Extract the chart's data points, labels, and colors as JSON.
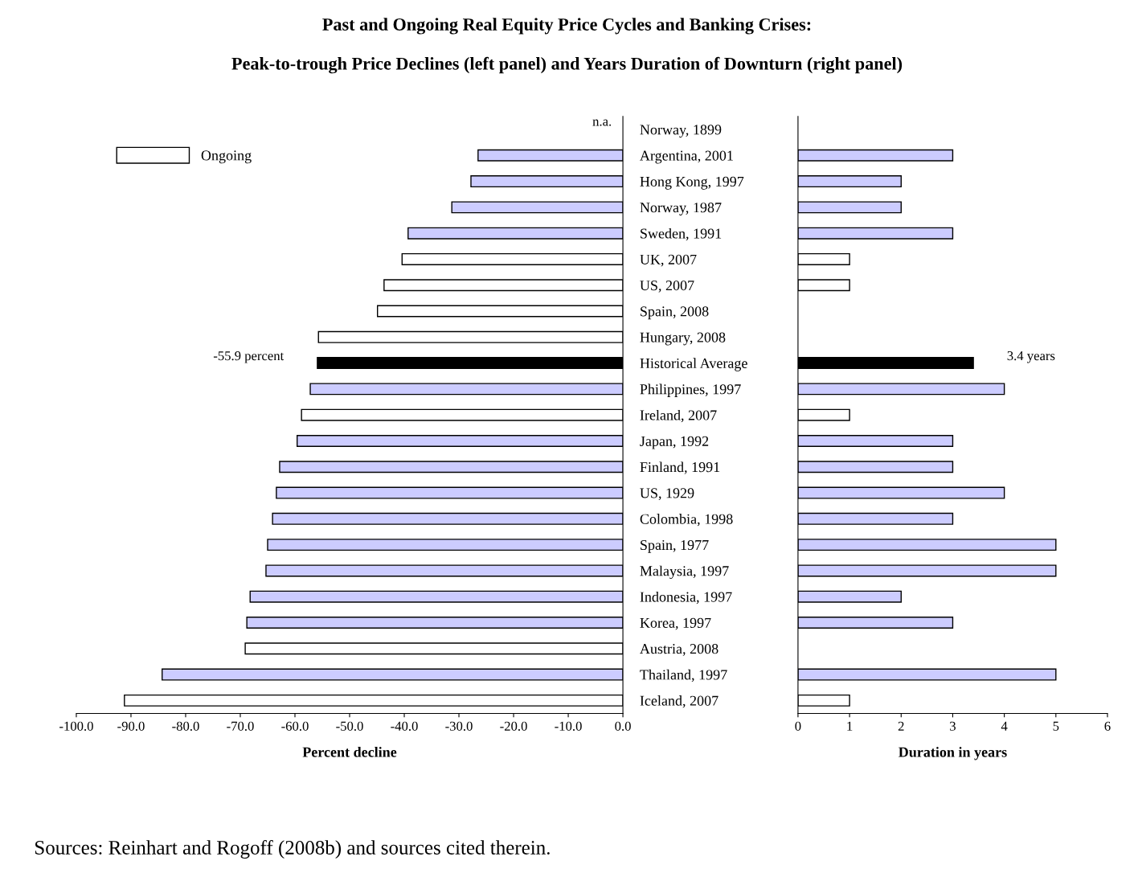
{
  "chart_data": [
    {
      "type": "bar",
      "orientation": "horizontal",
      "title": "Past and Ongoing Real Equity Price Cycles and Banking Crises:",
      "subtitle": "Peak-to-trough Price Declines (left panel) and Years Duration of Downturn (right panel)",
      "xlabel": "Percent decline",
      "categories": [
        "Norway, 1899",
        "Argentina, 2001",
        "Hong Kong, 1997",
        "Norway, 1987",
        "Sweden, 1991",
        "UK, 2007",
        "US, 2007",
        "Spain, 2008",
        "Hungary, 2008",
        "Historical Average",
        "Philippines, 1997",
        "Ireland, 2007",
        "Japan, 1992",
        "Finland, 1991",
        "US, 1929",
        "Colombia, 1998",
        "Spain, 1977",
        "Malaysia, 1997",
        "Indonesia, 1997",
        "Korea, 1997",
        "Austria, 2008",
        "Thailand, 1997",
        "Iceland, 2007"
      ],
      "series": [
        {
          "name": "Ongoing",
          "color": "#ffffff",
          "values": [
            null,
            null,
            null,
            null,
            null,
            -40.4,
            -43.7,
            -44.9,
            -55.7,
            null,
            null,
            -58.8,
            null,
            null,
            null,
            null,
            null,
            null,
            null,
            null,
            -69.1,
            null,
            -91.2
          ]
        },
        {
          "colors": [
            "#ccccff",
            "#ccccff",
            "#ccccff",
            "#ccccff",
            "#ccccff",
            "#ffffff",
            "#ffffff",
            "#ffffff",
            "#ffffff",
            "#000000",
            "#ccccff",
            "#ffffff",
            "#ccccff",
            "#ccccff",
            "#ccccff",
            "#ccccff",
            "#ccccff",
            "#ccccff",
            "#ccccff",
            "#ccccff",
            "#ffffff",
            "#ccccff",
            "#ffffff"
          ],
          "values": [
            null,
            -26.5,
            -27.8,
            -31.3,
            -39.3,
            null,
            null,
            null,
            null,
            -55.9,
            -57.2,
            null,
            -59.6,
            -62.8,
            -63.4,
            -64.1,
            -65.0,
            -65.3,
            -68.2,
            -68.8,
            null,
            -84.3,
            null
          ]
        }
      ],
      "xlim": [
        -100,
        0
      ],
      "xticks": [
        {
          "value": -100,
          "label": "-100.0"
        },
        {
          "value": -90,
          "label": "-90.0"
        },
        {
          "value": -80,
          "label": "-80.0"
        },
        {
          "value": -70,
          "label": "-70.0"
        },
        {
          "value": -60,
          "label": "-60.0"
        },
        {
          "value": -50,
          "label": "-50.0"
        },
        {
          "value": -40,
          "label": "-40.0"
        },
        {
          "value": -30,
          "label": "-30.0"
        },
        {
          "value": -20,
          "label": "-20.0"
        },
        {
          "value": -10,
          "label": "-10.0"
        },
        {
          "value": 0,
          "label": "0.0"
        }
      ],
      "legend": "top left",
      "annotations": [
        "n.a.",
        {
          "text": "-55.9 percent",
          "x": -55.9,
          "y": "Historical Average"
        },
        "Sources: Reinhart and Rogoff (2008b) and sources cited therein."
      ]
    },
    {
      "type": "bar",
      "orientation": "horizontal",
      "xlabel": "Duration in years",
      "tick_labels": "x",
      "categories": [
        "Norway, 1899",
        "Argentina, 2001",
        "Hong Kong, 1997",
        "Norway, 1987",
        "Sweden, 1991",
        "UK, 2007",
        "US, 2007",
        "Spain, 2008",
        "Hungary, 2008",
        "Historical Average",
        "Philippines, 1997",
        "Ireland, 2007",
        "Japan, 1992",
        "Finland, 1991",
        "US, 1929",
        "Colombia, 1998",
        "Spain, 1977",
        "Malaysia, 1997",
        "Indonesia, 1997",
        "Korea, 1997",
        "Austria, 2008",
        "Thailand, 1997",
        "Iceland, 2007"
      ],
      "series": [
        {
          "colors": [
            "#ccccff",
            "#ccccff",
            "#ccccff",
            "#ccccff",
            "#ccccff",
            "#ffffff",
            "#ffffff",
            "#ffffff",
            "#ffffff",
            "#000000",
            "#ccccff",
            "#ffffff",
            "#ccccff",
            "#ccccff",
            "#ccccff",
            "#ccccff",
            "#ccccff",
            "#ccccff",
            "#ccccff",
            "#ccccff",
            "#ffffff",
            "#ccccff",
            "#ffffff"
          ],
          "values": [
            null,
            3,
            2,
            2,
            3,
            1,
            1,
            null,
            null,
            3.4,
            4,
            1,
            3,
            3,
            4,
            3,
            5,
            5,
            2,
            3,
            null,
            5,
            1
          ]
        }
      ],
      "xlim": [
        0,
        6
      ],
      "xticks": [
        0,
        1,
        2,
        3,
        4,
        5,
        6
      ],
      "annotations": [
        {
          "text": "3.4 years",
          "x": 3.4,
          "y": "Historical Average"
        }
      ]
    }
  ]
}
